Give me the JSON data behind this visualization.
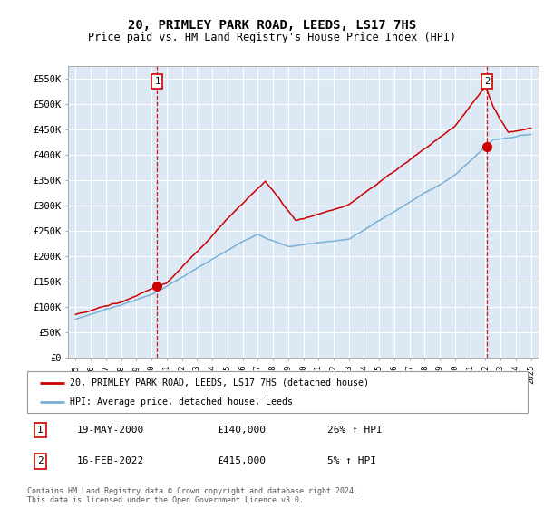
{
  "title": "20, PRIMLEY PARK ROAD, LEEDS, LS17 7HS",
  "subtitle": "Price paid vs. HM Land Registry's House Price Index (HPI)",
  "legend_entry1": "20, PRIMLEY PARK ROAD, LEEDS, LS17 7HS (detached house)",
  "legend_entry2": "HPI: Average price, detached house, Leeds",
  "sale1_label": "1",
  "sale1_date": "19-MAY-2000",
  "sale1_price": "£140,000",
  "sale1_hpi": "26% ↑ HPI",
  "sale1_year": 2000.38,
  "sale1_value": 140000,
  "sale2_label": "2",
  "sale2_date": "16-FEB-2022",
  "sale2_price": "£415,000",
  "sale2_hpi": "5% ↑ HPI",
  "sale2_year": 2022.12,
  "sale2_value": 415000,
  "line_color_red": "#cc0000",
  "line_color_blue": "#7ab0d4",
  "marker_color_red": "#cc0000",
  "bg_color": "#dce9f5",
  "grid_color": "#ffffff",
  "ylim": [
    0,
    575000
  ],
  "xlim_start": 1994.5,
  "xlim_end": 2025.5,
  "footnote": "Contains HM Land Registry data © Crown copyright and database right 2024.\nThis data is licensed under the Open Government Licence v3.0.",
  "yticks": [
    0,
    50000,
    100000,
    150000,
    200000,
    250000,
    300000,
    350000,
    400000,
    450000,
    500000,
    550000
  ],
  "ytick_labels": [
    "£0",
    "£50K",
    "£100K",
    "£150K",
    "£200K",
    "£250K",
    "£300K",
    "£350K",
    "£400K",
    "£450K",
    "£500K",
    "£550K"
  ],
  "xtick_years": [
    1995,
    1996,
    1997,
    1998,
    1999,
    2000,
    2001,
    2002,
    2003,
    2004,
    2005,
    2006,
    2007,
    2008,
    2009,
    2010,
    2011,
    2012,
    2013,
    2014,
    2015,
    2016,
    2017,
    2018,
    2019,
    2020,
    2021,
    2022,
    2023,
    2024,
    2025
  ]
}
